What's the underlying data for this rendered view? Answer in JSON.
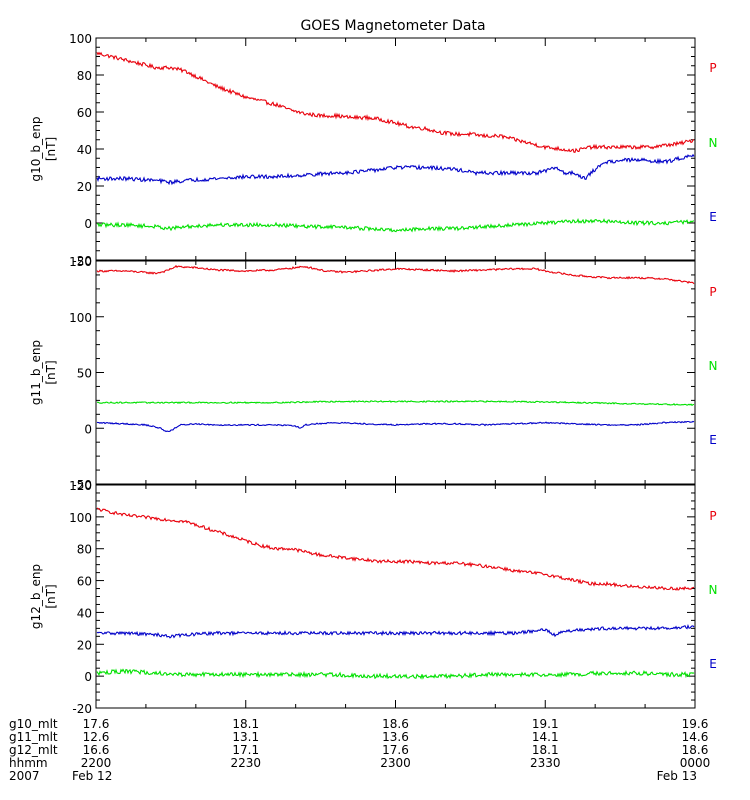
{
  "title": "GOES Magnetometer Data",
  "colors": {
    "P": "#e8000b",
    "N": "#00e000",
    "E": "#0000c8",
    "axis": "#000000"
  },
  "chart_data": [
    {
      "type": "line",
      "ylabel": "g10_b_enp",
      "yunit": "[nT]",
      "ylim": [
        -20,
        100
      ],
      "yticks": [
        -20,
        0,
        20,
        40,
        60,
        80,
        100
      ],
      "legend": [
        "P",
        "N",
        "E"
      ],
      "series": [
        {
          "name": "P",
          "color": "#e8000b",
          "noise": 1.0,
          "x": [
            0,
            3,
            6,
            9,
            12,
            15,
            18,
            21,
            24,
            27,
            30,
            33,
            36,
            39,
            42,
            45,
            48,
            51,
            54,
            57,
            60,
            63,
            66,
            69,
            72,
            75,
            78,
            81,
            84,
            87,
            90,
            93,
            96,
            99,
            102,
            105,
            108,
            111,
            114,
            117,
            120
          ],
          "y": [
            92,
            90,
            88,
            86,
            84,
            84,
            82,
            78,
            74,
            71,
            68,
            66,
            64,
            61,
            59,
            58,
            58,
            57,
            57,
            56,
            54,
            52,
            51,
            49,
            48,
            48,
            47,
            47,
            45,
            43,
            41,
            40,
            39,
            41,
            41,
            41,
            41,
            41,
            42,
            43,
            45
          ]
        },
        {
          "name": "E",
          "color": "#0000c8",
          "noise": 1.0,
          "x": [
            0,
            6,
            12,
            15,
            18,
            24,
            30,
            36,
            42,
            48,
            54,
            60,
            66,
            72,
            76,
            78,
            82,
            88,
            90,
            92,
            94,
            96,
            98,
            100,
            102,
            106,
            110,
            114,
            117,
            120
          ],
          "y": [
            24,
            24,
            23,
            22,
            23,
            24,
            25,
            25,
            26,
            27,
            28,
            30,
            30,
            29,
            27,
            27,
            27,
            27,
            28,
            30,
            27,
            27,
            24,
            29,
            33,
            34,
            34,
            33,
            35,
            37
          ]
        },
        {
          "name": "N",
          "color": "#00e000",
          "noise": 1.0,
          "x": [
            0,
            6,
            12,
            15,
            18,
            24,
            30,
            36,
            42,
            48,
            54,
            60,
            66,
            72,
            78,
            84,
            90,
            96,
            102,
            108,
            114,
            120
          ],
          "y": [
            -1,
            -1,
            -2,
            -3,
            -2,
            -1,
            -1,
            -1,
            -2,
            -2,
            -3,
            -4,
            -3,
            -3,
            -2,
            -1,
            0,
            1,
            1,
            0,
            0,
            1
          ]
        }
      ]
    },
    {
      "type": "line",
      "ylabel": "g11_b_enp",
      "yunit": "[nT]",
      "ylim": [
        -50,
        150
      ],
      "yticks": [
        -50,
        0,
        50,
        100,
        150
      ],
      "legend": [
        "P",
        "N",
        "E"
      ],
      "series": [
        {
          "name": "P",
          "color": "#e8000b",
          "noise": 0.8,
          "x": [
            0,
            6,
            12,
            14,
            16,
            20,
            24,
            30,
            36,
            40,
            42,
            46,
            50,
            54,
            60,
            66,
            72,
            78,
            84,
            88,
            90,
            96,
            102,
            108,
            114,
            120
          ],
          "y": [
            141,
            141,
            139,
            141,
            145,
            144,
            142,
            141,
            142,
            144,
            145,
            141,
            140,
            141,
            143,
            142,
            141,
            142,
            143,
            143,
            141,
            137,
            135,
            135,
            134,
            130
          ]
        },
        {
          "name": "N",
          "color": "#00e000",
          "noise": 0.6,
          "x": [
            0,
            12,
            24,
            36,
            48,
            60,
            72,
            84,
            96,
            108,
            120
          ],
          "y": [
            23,
            23,
            23,
            23,
            24,
            24,
            24,
            24,
            23,
            22,
            21
          ]
        },
        {
          "name": "E",
          "color": "#0000c8",
          "noise": 0.6,
          "x": [
            0,
            6,
            10,
            13,
            14,
            15,
            17,
            20,
            24,
            30,
            36,
            40,
            41,
            42,
            44,
            48,
            54,
            60,
            66,
            72,
            78,
            84,
            90,
            96,
            102,
            108,
            114,
            120
          ],
          "y": [
            5,
            4,
            3,
            0,
            -3,
            -2,
            3,
            4,
            3,
            3,
            3,
            2,
            0,
            3,
            4,
            5,
            4,
            3,
            4,
            4,
            3,
            4,
            5,
            4,
            3,
            3,
            5,
            6
          ]
        }
      ]
    },
    {
      "type": "line",
      "ylabel": "g12_b_enp",
      "yunit": "[nT]",
      "ylim": [
        -20,
        120
      ],
      "yticks": [
        -20,
        0,
        20,
        40,
        60,
        80,
        100,
        120
      ],
      "legend": [
        "P",
        "N",
        "E"
      ],
      "series": [
        {
          "name": "P",
          "color": "#e8000b",
          "noise": 1.0,
          "x": [
            0,
            3,
            6,
            9,
            12,
            15,
            18,
            21,
            24,
            27,
            30,
            33,
            36,
            39,
            42,
            45,
            48,
            51,
            54,
            57,
            60,
            63,
            66,
            69,
            72,
            75,
            78,
            81,
            84,
            87,
            90,
            93,
            96,
            99,
            102,
            105,
            108,
            111,
            114,
            117,
            120
          ],
          "y": [
            105,
            103,
            101,
            100,
            99,
            98,
            97,
            94,
            91,
            88,
            85,
            82,
            80,
            80,
            78,
            76,
            75,
            74,
            73,
            72,
            72,
            72,
            71,
            71,
            71,
            70,
            69,
            68,
            66,
            65,
            64,
            62,
            60,
            58,
            58,
            57,
            56,
            56,
            55,
            55,
            55
          ]
        },
        {
          "name": "E",
          "color": "#0000c8",
          "noise": 1.0,
          "x": [
            0,
            6,
            12,
            15,
            18,
            24,
            30,
            36,
            42,
            48,
            54,
            60,
            66,
            72,
            78,
            84,
            90,
            92,
            94,
            96,
            102,
            108,
            114,
            120
          ],
          "y": [
            27,
            27,
            26,
            25,
            26,
            27,
            27,
            27,
            27,
            27,
            27,
            27,
            27,
            27,
            27,
            27,
            29,
            26,
            28,
            29,
            30,
            30,
            30,
            31
          ]
        },
        {
          "name": "N",
          "color": "#00e000",
          "noise": 1.3,
          "x": [
            0,
            6,
            12,
            18,
            24,
            30,
            36,
            42,
            48,
            54,
            60,
            66,
            72,
            78,
            84,
            90,
            96,
            102,
            108,
            114,
            120
          ],
          "y": [
            2,
            3,
            2,
            1,
            1,
            1,
            1,
            1,
            1,
            0,
            0,
            0,
            0,
            1,
            1,
            1,
            1,
            2,
            2,
            1,
            1
          ]
        }
      ]
    }
  ],
  "x_axis": {
    "range_minutes": [
      0,
      120
    ],
    "tick_minutes": [
      0,
      30,
      60,
      90,
      120
    ],
    "minor_step_minutes": 10,
    "rows": [
      {
        "label": "g10_mlt",
        "values": [
          "17.6",
          "18.1",
          "18.6",
          "19.1",
          "19.6"
        ]
      },
      {
        "label": "g11_mlt",
        "values": [
          "12.6",
          "13.1",
          "13.6",
          "14.1",
          "14.6"
        ]
      },
      {
        "label": "g12_mlt",
        "values": [
          "16.6",
          "17.1",
          "17.6",
          "18.1",
          "18.6"
        ]
      },
      {
        "label": "hhmm",
        "values": [
          "2200",
          "2230",
          "2300",
          "2330",
          "0000"
        ]
      }
    ],
    "date_row": {
      "label": "2007",
      "start": "Feb 12",
      "end": "Feb 13"
    }
  }
}
